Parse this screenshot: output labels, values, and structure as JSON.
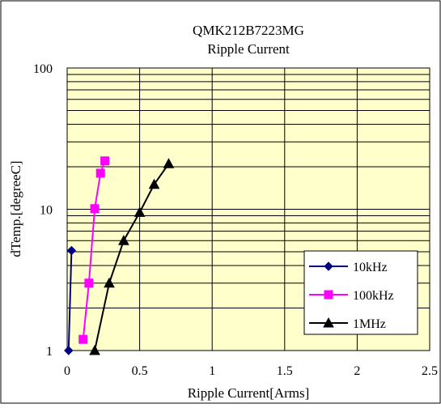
{
  "colors": {
    "plot_background": "#ffffcc",
    "chart_background": "#ffffff",
    "grid": "#000000",
    "series_10khz": "#000080",
    "series_100khz": "#ff00ff",
    "series_1mhz": "#000000"
  },
  "chart_data": {
    "type": "line",
    "title": "QMK212B7223MG",
    "subtitle": "Ripple Current",
    "xlabel": "Ripple Current[Arms]",
    "ylabel": "dTemp.[degreeC]",
    "xlim": [
      0,
      2.5
    ],
    "ylim": [
      1,
      100
    ],
    "yscale": "log",
    "grid": "on",
    "legend_position": "bottom-right",
    "x_ticks": [
      "0",
      "0.5",
      "1",
      "1.5",
      "2",
      "2.5"
    ],
    "y_ticks": [
      "1",
      "10",
      "100"
    ],
    "series": [
      {
        "name": "10kHz",
        "marker": "diamond",
        "color": "#000080",
        "points": [
          [
            0.01,
            1.0
          ],
          [
            0.03,
            5.1
          ]
        ]
      },
      {
        "name": "100kHz",
        "marker": "square",
        "color": "#ff00ff",
        "points": [
          [
            0.11,
            1.2
          ],
          [
            0.15,
            3.0
          ],
          [
            0.19,
            10.1
          ],
          [
            0.23,
            18.0
          ],
          [
            0.26,
            22.0
          ]
        ]
      },
      {
        "name": "1MHz",
        "marker": "triangle",
        "color": "#000000",
        "points": [
          [
            0.19,
            1.0
          ],
          [
            0.29,
            3.0
          ],
          [
            0.39,
            6.0
          ],
          [
            0.5,
            9.5
          ],
          [
            0.6,
            15.0
          ],
          [
            0.7,
            21.0
          ]
        ]
      }
    ]
  }
}
